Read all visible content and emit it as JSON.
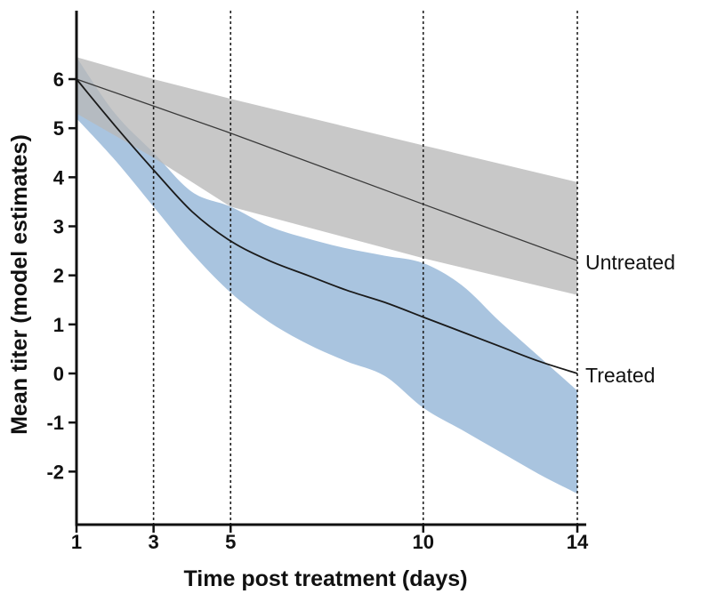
{
  "chart_data": {
    "type": "line",
    "title": "",
    "xlabel": "Time post treatment (days)",
    "ylabel": "Mean titer (model estimates)",
    "xlim": [
      1,
      14
    ],
    "ylim": [
      -3,
      7
    ],
    "x_ticks": [
      {
        "value": 1,
        "label": "1"
      },
      {
        "value": 3,
        "label": "3"
      },
      {
        "value": 5,
        "label": "5"
      },
      {
        "value": 10,
        "label": "10"
      },
      {
        "value": 14,
        "label": "14"
      }
    ],
    "y_ticks": [
      {
        "value": 6,
        "label": "6"
      },
      {
        "value": 5,
        "label": "5"
      },
      {
        "value": 4,
        "label": "4"
      },
      {
        "value": 3,
        "label": "3"
      },
      {
        "value": 2,
        "label": "2"
      },
      {
        "value": 1,
        "label": "1"
      },
      {
        "value": 0,
        "label": "0"
      },
      {
        "value": -1,
        "label": "-1"
      },
      {
        "value": -2,
        "label": "-2"
      }
    ],
    "vertical_reference_lines": [
      3,
      5,
      10,
      14
    ],
    "grid": false,
    "legend": "none",
    "series": [
      {
        "name": "Untreated",
        "color": "#3a3a3a",
        "band_color": "#b9b9b9",
        "x": [
          1,
          3,
          5,
          10,
          14
        ],
        "values": [
          6.0,
          5.45,
          4.9,
          3.45,
          2.3
        ],
        "upper": [
          6.45,
          6.0,
          5.6,
          4.65,
          3.9
        ],
        "lower": [
          5.3,
          4.4,
          3.4,
          2.35,
          1.6
        ]
      },
      {
        "name": "Treated",
        "color": "#1a1a1a",
        "band_color": "#a9c4df",
        "x": [
          1,
          2,
          3,
          4,
          5,
          6,
          7,
          8,
          9,
          10,
          11,
          12,
          13,
          14
        ],
        "values": [
          6.0,
          5.05,
          4.15,
          3.3,
          2.7,
          2.3,
          2.0,
          1.7,
          1.45,
          1.15,
          0.85,
          0.55,
          0.25,
          0.0
        ],
        "upper": [
          6.45,
          5.3,
          4.5,
          3.7,
          3.4,
          3.0,
          2.75,
          2.55,
          2.4,
          2.25,
          1.8,
          1.05,
          0.35,
          -0.35
        ],
        "lower": [
          5.2,
          4.35,
          3.4,
          2.45,
          1.65,
          1.05,
          0.6,
          0.25,
          -0.05,
          -0.7,
          -1.15,
          -1.6,
          -2.05,
          -2.45
        ]
      }
    ]
  }
}
